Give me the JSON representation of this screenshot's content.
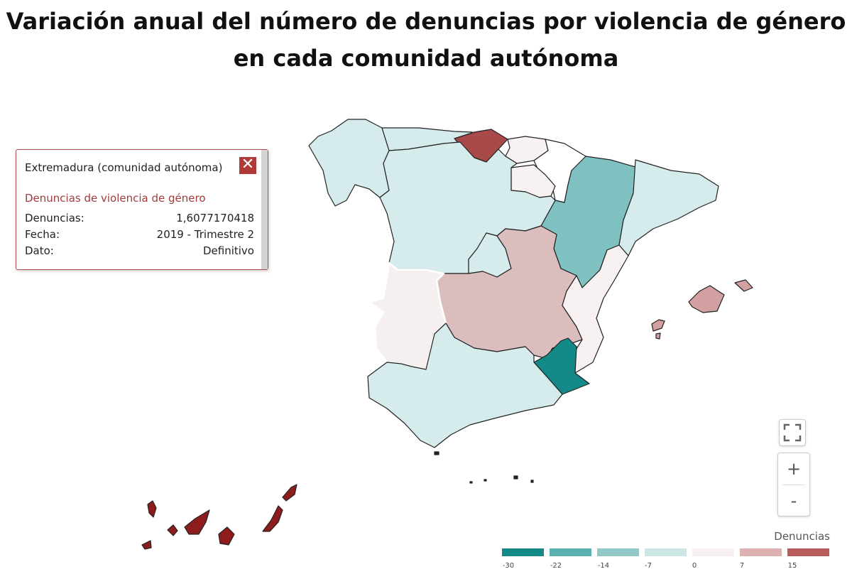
{
  "title": "Variación anual del número de denuncias por violencia de género en cada comunidad autónoma",
  "tooltip": {
    "title": "Extremadura (comunidad autónoma)",
    "subtitle": "Denuncias de violencia de género",
    "rows": [
      {
        "label": "Denuncias:",
        "value": "1,6077170418"
      },
      {
        "label": "Fecha:",
        "value": "2019 - Trimestre 2"
      },
      {
        "label": "Dato:",
        "value": "Definitivo"
      }
    ]
  },
  "controls": {
    "fullscreen_icon": "fullscreen-icon",
    "zoom_in": "+",
    "zoom_out": "-"
  },
  "legend": {
    "title": "Denuncias",
    "ticks": [
      "-30",
      "-22",
      "-14",
      "-7",
      "0",
      "7",
      "15"
    ],
    "colors": [
      "#138a88",
      "#5bb0b0",
      "#8fc8c6",
      "#cce6e6",
      "#f8f0f0",
      "#deb0b0",
      "#b85c5c"
    ]
  },
  "region_colors": {
    "galicia": "#d6ebeb",
    "asturias": "#d6ebeb",
    "cantabria": "#a84a4a",
    "pais_vasco": "#f8f1f1",
    "navarra": "#ffffff",
    "la_rioja": "#f8f1f1",
    "aragon": "#7fc1c0",
    "cataluna": "#d6ebeb",
    "castilla_leon": "#d6ebeb",
    "madrid": "#d6ebeb",
    "castilla_la_mancha": "#dcbdbd",
    "extremadura": "#f6efef",
    "valencia": "#f8f1f1",
    "murcia": "#138a88",
    "andalucia": "#d6ebeb",
    "baleares": "#d2a0a0",
    "canarias": "#8e1c1c",
    "ceuta_melilla": "#222222"
  }
}
